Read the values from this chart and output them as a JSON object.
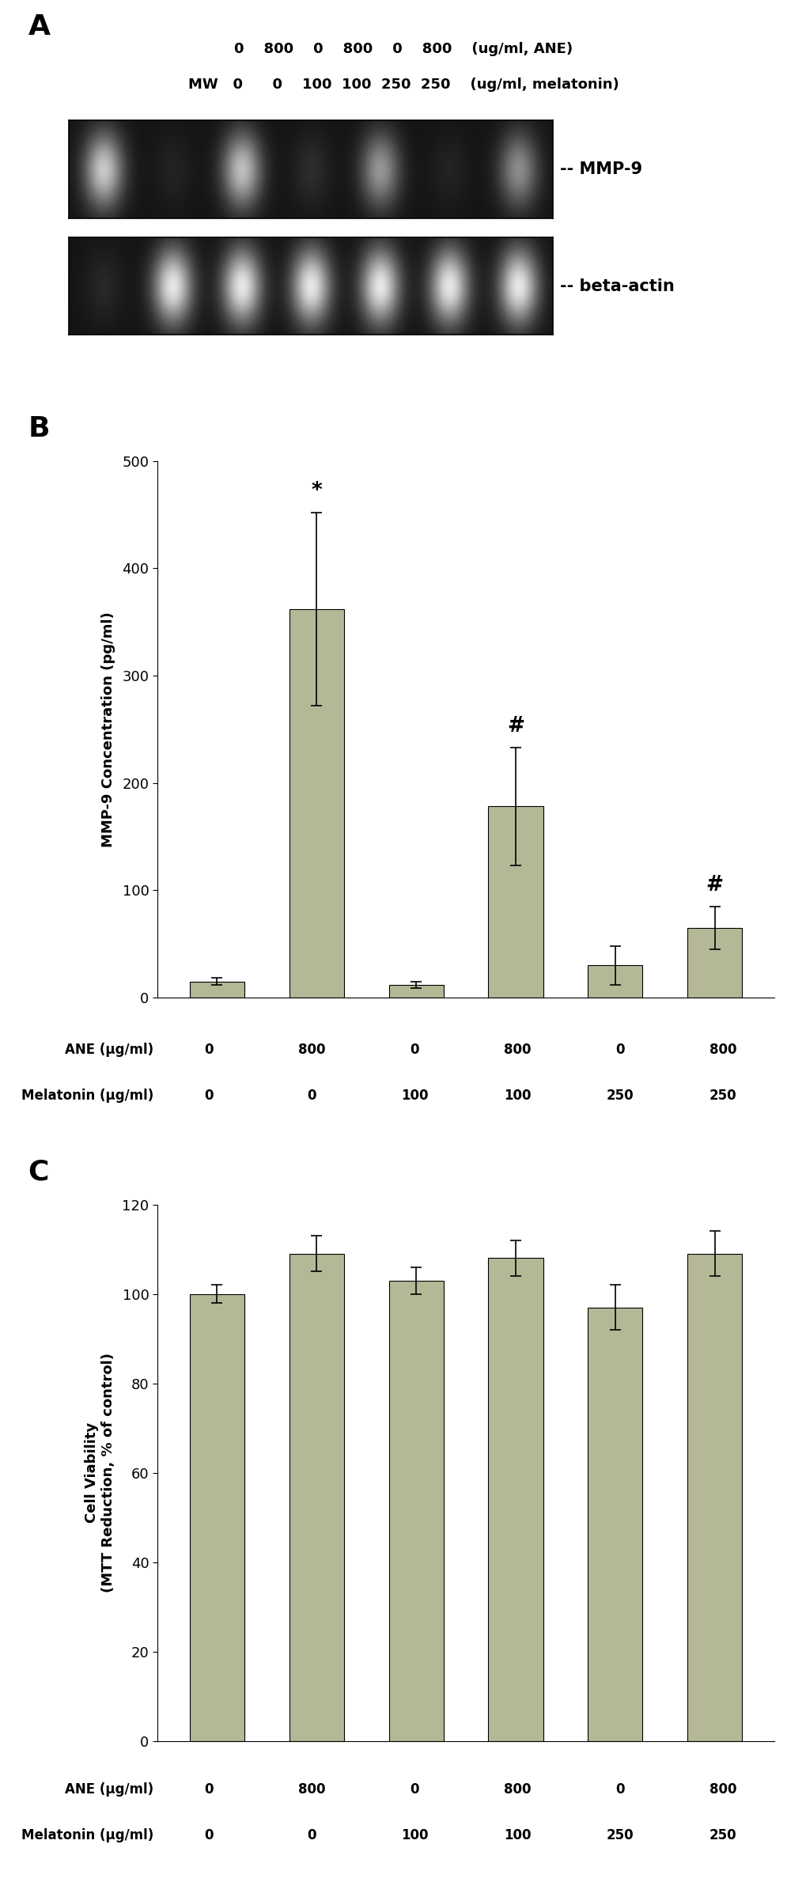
{
  "panel_A": {
    "label": "A",
    "ane_text": "0   800   0   800   0   800   (ug/ml, ANE)",
    "mel_text": "MW  0     0   100  100  250  250   (ug/ml, melatonin)",
    "mmp9_label": "-- MMP-9",
    "actin_label": "-- beta-actin",
    "mmp9_bands": [
      180,
      15,
      170,
      25,
      130,
      15,
      120
    ],
    "beta_bands": [
      20,
      210,
      210,
      210,
      210,
      210,
      210
    ]
  },
  "panel_B": {
    "label": "B",
    "bar_values": [
      15,
      362,
      12,
      178,
      30,
      65
    ],
    "bar_errors": [
      3,
      90,
      3,
      55,
      18,
      20
    ],
    "bar_color": "#b5b896",
    "ylabel": "MMP-9 Concentration (pg/ml)",
    "ylim": [
      0,
      500
    ],
    "yticks": [
      0,
      100,
      200,
      300,
      400,
      500
    ],
    "ane_labels": [
      "0",
      "800",
      "0",
      "800",
      "0",
      "800"
    ],
    "mel_labels": [
      "0",
      "0",
      "100",
      "100",
      "250",
      "250"
    ],
    "ane_row_label": "ANE (μg/ml)",
    "mel_row_label": "Melatonin (μg/ml)",
    "significance": [
      null,
      "*",
      null,
      "#",
      null,
      "#"
    ]
  },
  "panel_C": {
    "label": "C",
    "bar_values": [
      100,
      109,
      103,
      108,
      97,
      109
    ],
    "bar_errors": [
      2,
      4,
      3,
      4,
      5,
      5
    ],
    "bar_color": "#b5b896",
    "ylabel": "Cell Viability\n(MTT Reduction, % of control)",
    "ylim": [
      0,
      120
    ],
    "yticks": [
      0,
      20,
      40,
      60,
      80,
      100,
      120
    ],
    "ane_labels": [
      "0",
      "800",
      "0",
      "800",
      "0",
      "800"
    ],
    "mel_labels": [
      "0",
      "0",
      "100",
      "100",
      "250",
      "250"
    ],
    "ane_row_label": "ANE (μg/ml)",
    "mel_row_label": "Melatonin (μg/ml)"
  }
}
